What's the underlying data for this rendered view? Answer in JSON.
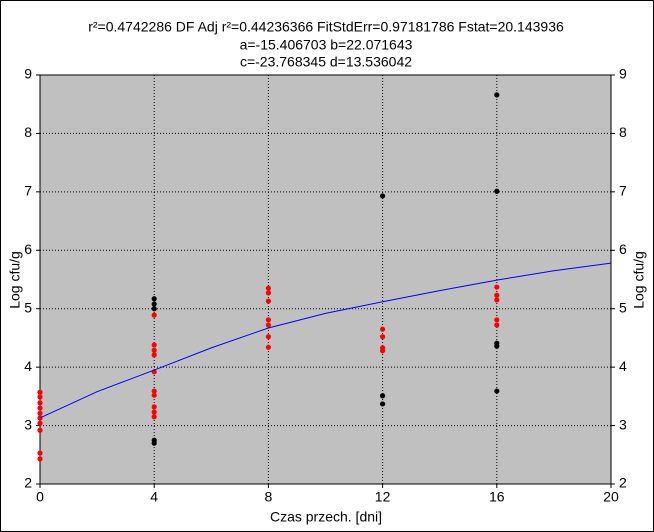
{
  "chart_data": {
    "type": "scatter",
    "title_lines": [
      "r²=0.4742286  DF Adj r²=0.44236366  FitStdErr=0.97181786  Fstat=20.143936",
      "a=-15.406703 b=22.071643",
      "c=-23.768345 d=13.536042"
    ],
    "x_label": "Czas przech. [dni]",
    "y_label": "Log cfu/g",
    "y2_label": "Log cfu/g",
    "xlim": [
      0,
      20
    ],
    "xticks": [
      0,
      4,
      8,
      12,
      16,
      20
    ],
    "ylim": [
      2,
      9
    ],
    "yticks": [
      2,
      3,
      4,
      5,
      6,
      7,
      8,
      9
    ],
    "y2lim": [
      2,
      9
    ],
    "y2ticks": [
      2,
      3,
      4,
      5,
      6,
      7,
      8,
      9
    ],
    "grid": true,
    "plot_background": "#c0c0c0",
    "series": [
      {
        "color": "#000000",
        "mode": "markers",
        "x": [
          4,
          4,
          4,
          4,
          4,
          12,
          12,
          12,
          16,
          16,
          16,
          16,
          16
        ],
        "values": [
          5.17,
          5.08,
          5.0,
          2.75,
          2.7,
          6.93,
          3.51,
          3.37,
          8.66,
          7.01,
          4.41,
          4.36,
          3.59
        ]
      },
      {
        "color": "#ff0000",
        "mode": "markers",
        "x": [
          0,
          0,
          0,
          0,
          0,
          0,
          0,
          0,
          0,
          0,
          4,
          4,
          4,
          4,
          4,
          4,
          4,
          4,
          4,
          4,
          8,
          8,
          8,
          8,
          8,
          8,
          8,
          12,
          12,
          12,
          12,
          16,
          16,
          16,
          16,
          16
        ],
        "values": [
          3.57,
          3.49,
          3.39,
          3.3,
          3.21,
          3.13,
          3.04,
          2.92,
          2.53,
          2.43,
          4.89,
          4.38,
          4.29,
          4.21,
          3.92,
          3.59,
          3.52,
          3.32,
          3.23,
          3.15,
          5.35,
          5.27,
          5.13,
          4.81,
          4.72,
          4.52,
          4.34,
          4.65,
          4.52,
          4.33,
          4.28,
          5.37,
          5.23,
          5.15,
          4.81,
          4.72
        ]
      },
      {
        "color": "#0000ff",
        "mode": "line",
        "x": [
          0,
          2,
          4,
          6,
          8,
          10,
          12,
          14,
          16,
          18,
          20
        ],
        "values": [
          3.13,
          3.58,
          3.95,
          4.33,
          4.67,
          4.92,
          5.12,
          5.31,
          5.49,
          5.65,
          5.78
        ]
      }
    ]
  }
}
